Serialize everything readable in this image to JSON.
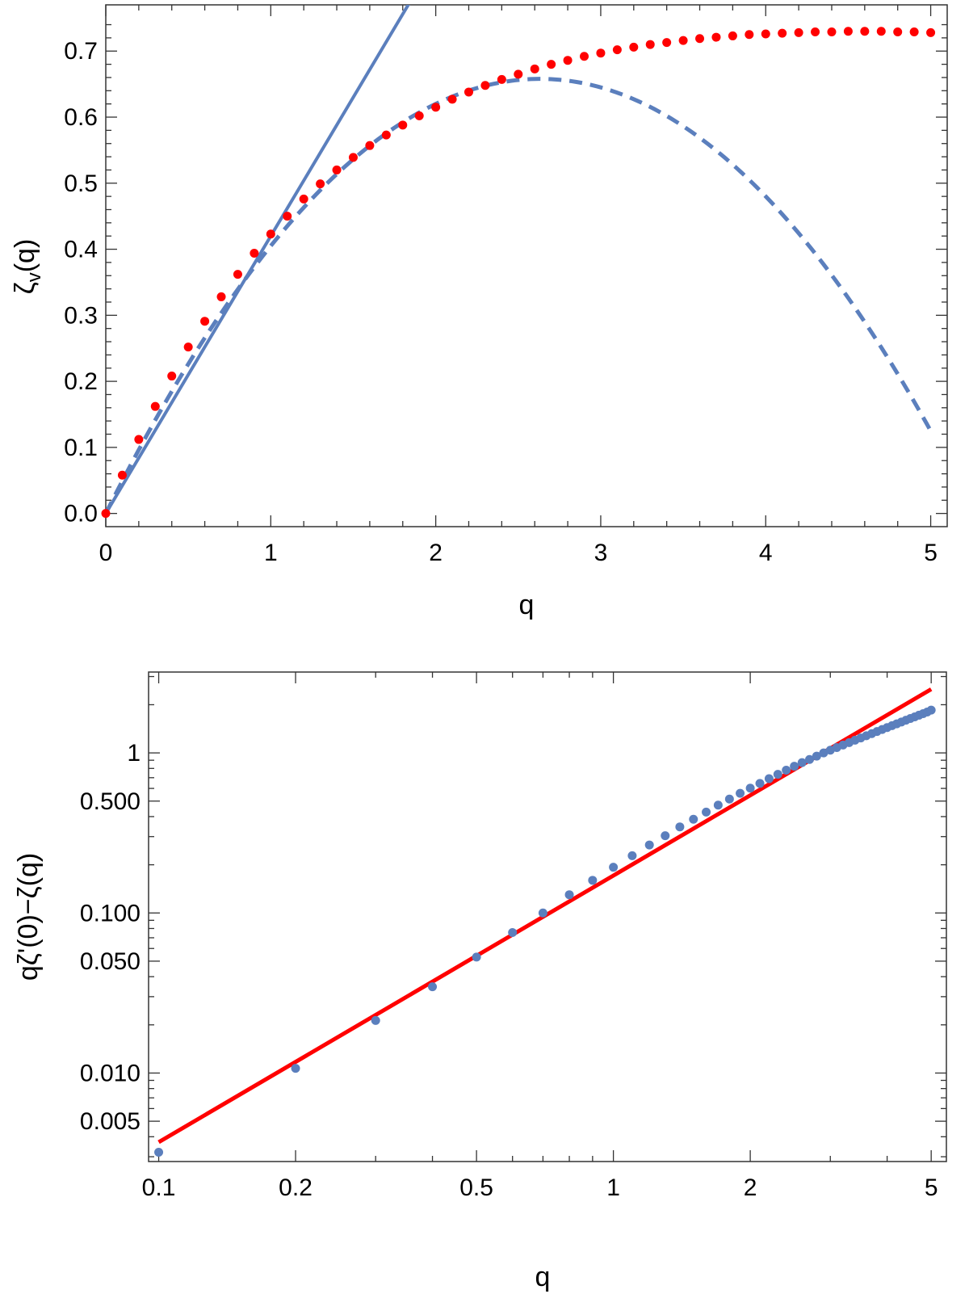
{
  "chart_data": [
    {
      "type": "line",
      "xlabel": "q",
      "ylabel": "ζ_v(q)",
      "xlim": [
        0,
        5.1
      ],
      "ylim": [
        -0.02,
        0.77
      ],
      "xticks": [
        0,
        1,
        2,
        3,
        4,
        5
      ],
      "xtick_labels": [
        "0",
        "1",
        "2",
        "3",
        "4",
        "5"
      ],
      "yticks": [
        0.0,
        0.1,
        0.2,
        0.3,
        0.4,
        0.5,
        0.6,
        0.7
      ],
      "ytick_labels": [
        "0.0",
        "0.1",
        "0.2",
        "0.3",
        "0.4",
        "0.5",
        "0.6",
        "0.7"
      ],
      "grid": false,
      "colors": {
        "red_dots": "#ff0000",
        "blue_lines": "#5b7fbd"
      },
      "series": [
        {
          "style": "solid",
          "kind": "linear",
          "slope": 0.42,
          "x": [
            0,
            1.85
          ]
        },
        {
          "style": "dashed",
          "kind": "quadratic",
          "a": 0.5,
          "b": -0.095,
          "x": [
            0,
            5
          ]
        },
        {
          "style": "dots",
          "x": [
            0,
            0.1,
            0.2,
            0.3,
            0.4,
            0.5,
            0.6,
            0.7,
            0.8,
            0.9,
            1.0,
            1.1,
            1.2,
            1.3,
            1.4,
            1.5,
            1.6,
            1.7,
            1.8,
            1.9,
            2.0,
            2.1,
            2.2,
            2.3,
            2.4,
            2.5,
            2.6,
            2.7,
            2.8,
            2.9,
            3.0,
            3.1,
            3.2,
            3.3,
            3.4,
            3.5,
            3.6,
            3.7,
            3.8,
            3.9,
            4.0,
            4.1,
            4.2,
            4.3,
            4.4,
            4.5,
            4.6,
            4.7,
            4.8,
            4.9,
            5.0
          ],
          "y": [
            0.0,
            0.058,
            0.112,
            0.162,
            0.208,
            0.252,
            0.291,
            0.328,
            0.362,
            0.394,
            0.423,
            0.45,
            0.476,
            0.499,
            0.52,
            0.539,
            0.557,
            0.573,
            0.588,
            0.602,
            0.615,
            0.627,
            0.638,
            0.648,
            0.657,
            0.665,
            0.673,
            0.68,
            0.686,
            0.692,
            0.697,
            0.702,
            0.706,
            0.71,
            0.713,
            0.716,
            0.719,
            0.721,
            0.723,
            0.725,
            0.726,
            0.727,
            0.728,
            0.729,
            0.729,
            0.73,
            0.73,
            0.73,
            0.729,
            0.729,
            0.728
          ]
        }
      ]
    },
    {
      "type": "scatter",
      "scale": "log-log",
      "xlabel": "q",
      "ylabel": "qζ'(0)−ζ(q)",
      "xlim": [
        0.095,
        5.4
      ],
      "ylim": [
        0.0028,
        3.2
      ],
      "xticks": [
        0.1,
        0.2,
        0.5,
        1,
        2,
        5
      ],
      "xtick_labels": [
        "0.1",
        "0.2",
        "0.5",
        "1",
        "2",
        "5"
      ],
      "yticks": [
        0.005,
        0.01,
        0.05,
        0.1,
        0.5,
        1
      ],
      "ytick_labels": [
        "0.005",
        "0.010",
        "0.050",
        "0.100",
        "0.500",
        "1"
      ],
      "grid": false,
      "colors": {
        "fit_line": "#ff0000",
        "points": "#5b7fbd"
      },
      "fit_line": {
        "x": [
          0.1,
          5
        ],
        "y": [
          0.0037,
          2.5
        ]
      },
      "points": {
        "x": [
          0.1,
          0.2,
          0.3,
          0.4,
          0.5,
          0.6,
          0.7,
          0.8,
          0.9,
          1.0,
          1.1,
          1.2,
          1.3,
          1.4,
          1.5,
          1.6,
          1.7,
          1.8,
          1.9,
          2.0,
          2.1,
          2.2,
          2.3,
          2.4,
          2.5,
          2.6,
          2.7,
          2.8,
          2.9,
          3.0,
          3.1,
          3.2,
          3.3,
          3.4,
          3.5,
          3.6,
          3.7,
          3.8,
          3.9,
          4.0,
          4.1,
          4.2,
          4.3,
          4.4,
          4.5,
          4.6,
          4.7,
          4.8,
          4.9,
          5.0
        ],
        "y": [
          0.0032,
          0.0107,
          0.0213,
          0.0346,
          0.053,
          0.0755,
          0.1,
          0.13,
          0.16,
          0.193,
          0.228,
          0.266,
          0.304,
          0.345,
          0.385,
          0.427,
          0.472,
          0.515,
          0.559,
          0.602,
          0.645,
          0.69,
          0.735,
          0.78,
          0.825,
          0.87,
          0.91,
          0.955,
          1.0,
          1.04,
          1.08,
          1.12,
          1.16,
          1.2,
          1.24,
          1.28,
          1.32,
          1.36,
          1.4,
          1.44,
          1.48,
          1.52,
          1.56,
          1.6,
          1.64,
          1.68,
          1.72,
          1.76,
          1.8,
          1.85
        ]
      }
    }
  ]
}
